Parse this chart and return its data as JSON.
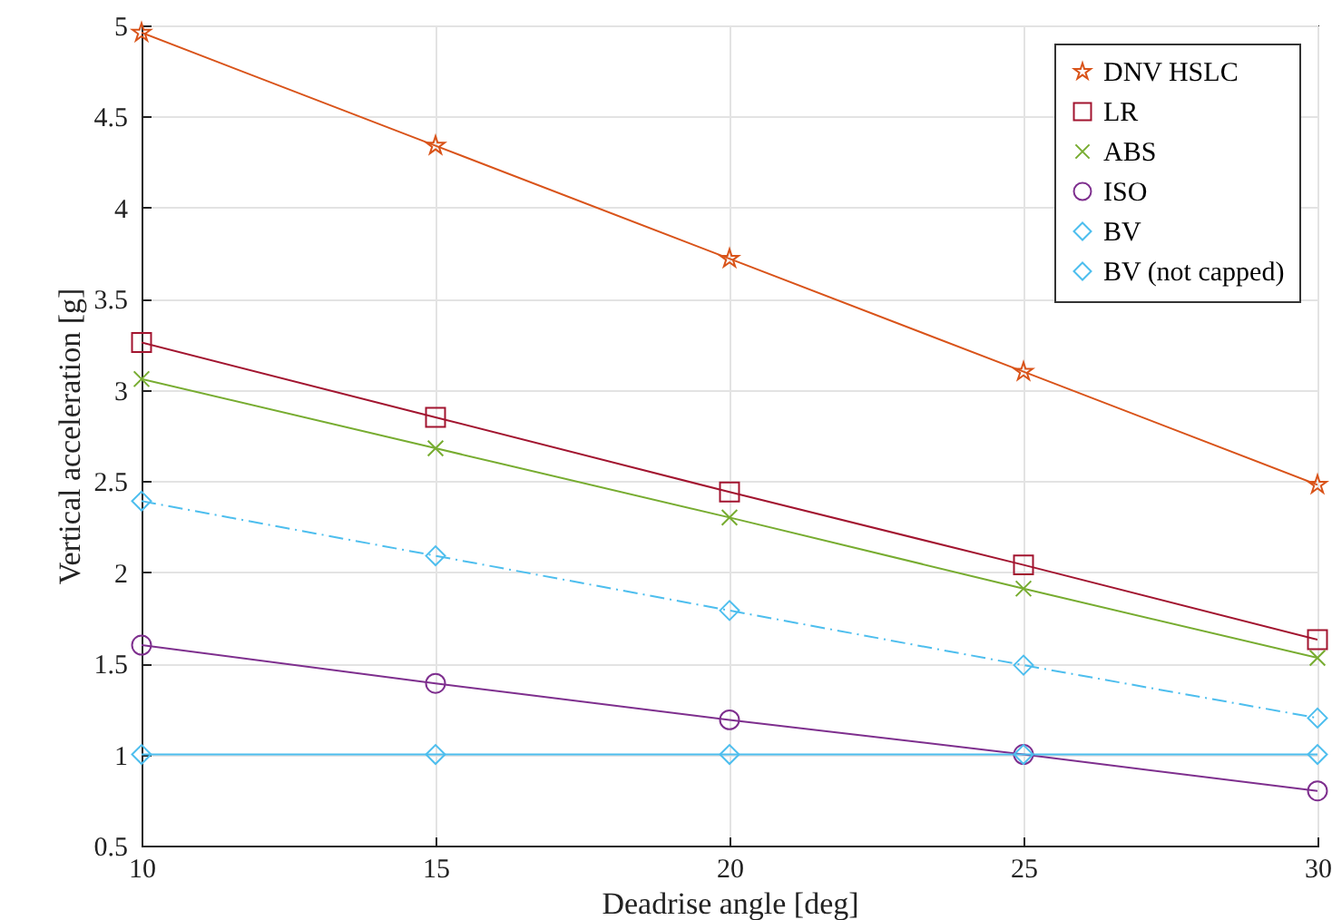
{
  "chart_data": {
    "type": "line",
    "xlabel": "Deadrise angle [deg]",
    "ylabel": "Vertical acceleration [g]",
    "x": [
      10,
      15,
      20,
      25,
      30
    ],
    "series": [
      {
        "name": "DNV HSLC",
        "color": "#d95319",
        "marker": "star",
        "line_style": "solid",
        "values": [
          4.96,
          4.34,
          3.72,
          3.1,
          2.48
        ]
      },
      {
        "name": "LR",
        "color": "#a2142f",
        "marker": "square",
        "line_style": "solid",
        "values": [
          3.26,
          2.85,
          2.44,
          2.04,
          1.63
        ]
      },
      {
        "name": "ABS",
        "color": "#77ac30",
        "marker": "cross",
        "line_style": "solid",
        "values": [
          3.06,
          2.68,
          2.3,
          1.91,
          1.53
        ]
      },
      {
        "name": "ISO",
        "color": "#7e2f8e",
        "marker": "circle",
        "line_style": "solid",
        "values": [
          1.6,
          1.39,
          1.19,
          1.0,
          0.8
        ]
      },
      {
        "name": "BV",
        "color": "#4dbeee",
        "marker": "diamond",
        "line_style": "solid",
        "values": [
          1,
          1,
          1,
          1,
          1
        ]
      },
      {
        "name": "BV (not capped)",
        "color": "#4dbeee",
        "marker": "diamond",
        "line_style": "dashdot",
        "values": [
          2.39,
          2.09,
          1.79,
          1.49,
          1.2
        ]
      }
    ],
    "xlim": [
      10,
      30
    ],
    "xticks": [
      10,
      15,
      20,
      25,
      30
    ],
    "ylim": [
      0.5,
      5
    ],
    "yticks": [
      0.5,
      1,
      1.5,
      2,
      2.5,
      3,
      3.5,
      4,
      4.5,
      5
    ],
    "grid": true,
    "legend": "top right"
  }
}
